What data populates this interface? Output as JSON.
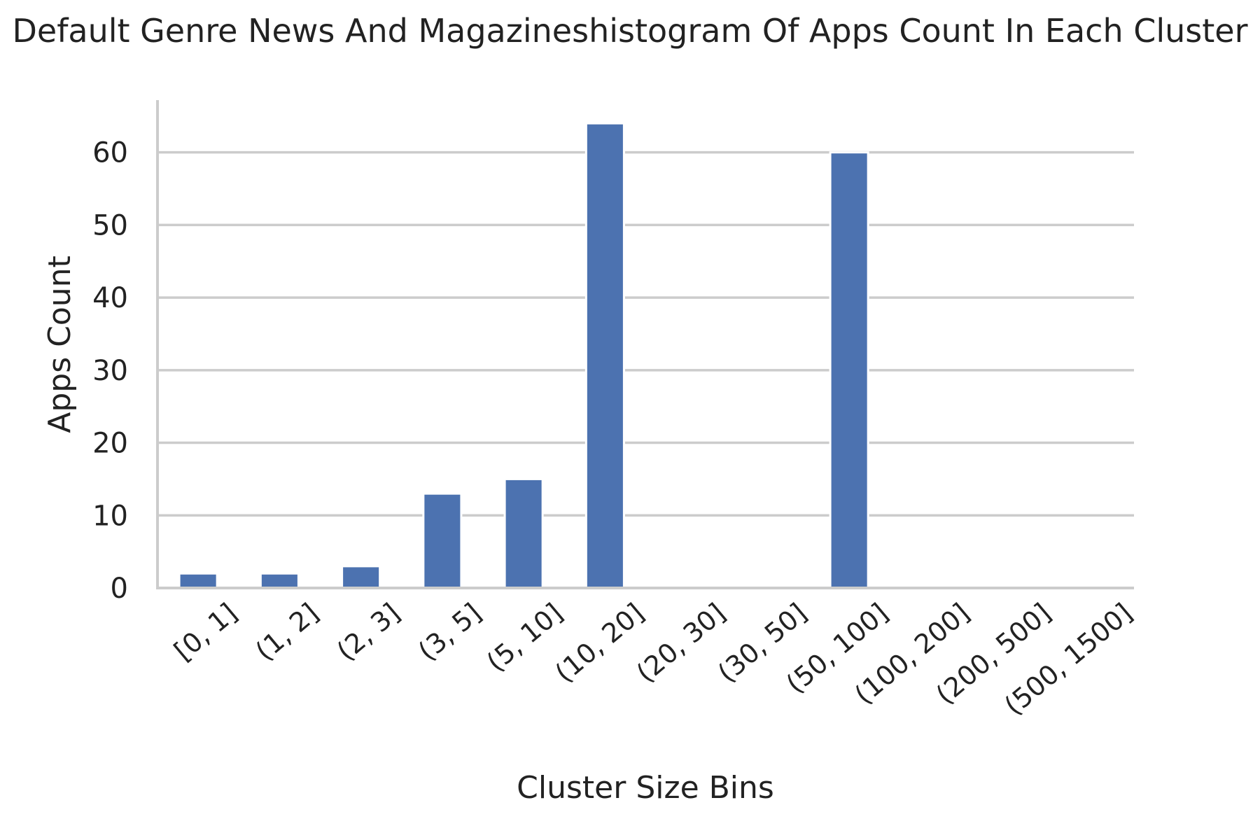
{
  "chart_data": {
    "type": "bar",
    "title": "Default Genre News And Magazineshistogram Of Apps Count In Each Cluster",
    "xlabel": "Cluster Size Bins",
    "ylabel": "Apps Count",
    "categories": [
      "[0, 1]",
      "(1, 2]",
      "(2, 3]",
      "(3, 5]",
      "(5, 10]",
      "(10, 20]",
      "(20, 30]",
      "(30, 50]",
      "(50, 100]",
      "(100, 200]",
      "(200, 500]",
      "(500, 1500]"
    ],
    "values": [
      2,
      2,
      3,
      13,
      15,
      64,
      0,
      0,
      60,
      0,
      0,
      0
    ],
    "ylim": [
      0,
      67.2
    ],
    "yticks": [
      0,
      10,
      20,
      30,
      40,
      50,
      60
    ],
    "grid": "horizontal",
    "bar_color": "#4c72b0"
  }
}
